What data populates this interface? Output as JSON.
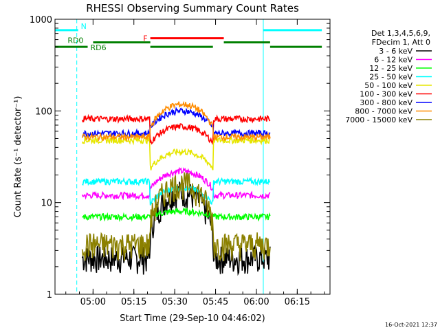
{
  "chart_data": {
    "type": "line",
    "title": "RHESSI Observing Summary Count Rates",
    "xlabel": "Start Time (29-Sep-10 04:46:02)",
    "ylabel": "Count Rate (s⁻¹ detector⁻¹)",
    "x_unit": "minutes since 04:46:02",
    "xlim": [
      0,
      101
    ],
    "ylim": [
      1,
      1000
    ],
    "yscale": "log",
    "x_ticks": [
      {
        "t": 13.97,
        "label": "05:00"
      },
      {
        "t": 28.97,
        "label": "05:15"
      },
      {
        "t": 43.97,
        "label": "05:30"
      },
      {
        "t": 58.97,
        "label": "05:45"
      },
      {
        "t": 73.97,
        "label": "06:00"
      },
      {
        "t": 88.97,
        "label": "06:15"
      }
    ],
    "y_ticks": [
      {
        "v": 1,
        "label": "1"
      },
      {
        "v": 10,
        "label": "10"
      },
      {
        "v": 100,
        "label": "100"
      },
      {
        "v": 1000,
        "label": "1000"
      }
    ],
    "legend": {
      "position": "right",
      "header": [
        "Det 1,3,4,5,6,9,",
        "FDecim 1, Att 0"
      ]
    },
    "series": [
      {
        "name": "3 - 6 keV",
        "color": "#000000",
        "base": 2.5,
        "peak": 13
      },
      {
        "name": "6 - 12 keV",
        "color": "#ff00ff",
        "base": 12,
        "peak": 22
      },
      {
        "name": "12 - 25 keV",
        "color": "#00ff00",
        "base": 7,
        "peak": 8
      },
      {
        "name": "25 - 50 keV",
        "color": "#00ffff",
        "base": 17,
        "peak": 13
      },
      {
        "name": "50 - 100 keV",
        "color": "#e6e600",
        "base": 48,
        "peak": 28
      },
      {
        "name": "100 - 300 keV",
        "color": "#ff0000",
        "base": 82,
        "peak": 58
      },
      {
        "name": "300 - 800 keV",
        "color": "#0000ff",
        "base": 57,
        "peak": 100
      },
      {
        "name": "800 - 7000 keV",
        "color": "#ff8c00",
        "base": 52,
        "peak": 118
      },
      {
        "name": "7000 - 15000 keV",
        "color": "#8b8000",
        "base": 3.5,
        "peak": 16
      }
    ],
    "night_lines": [
      0,
      8,
      101
    ],
    "saa_lines": [
      76.5
    ],
    "segments": [
      {
        "label": "N",
        "color": "#00ffff",
        "level": 760,
        "from": 0,
        "to": 8.5
      },
      {
        "label": "",
        "color": "#00ffff",
        "level": 760,
        "from": 76.5,
        "to": 98
      },
      {
        "label": "F",
        "color": "#ff0000",
        "level": 620,
        "from": 35,
        "to": 62
      },
      {
        "label": "RD0",
        "color": "#008000",
        "level": 560,
        "from": 14,
        "to": 35
      },
      {
        "label": "RD6",
        "color": "#008000",
        "level": 500,
        "from": 0,
        "to": 12
      },
      {
        "label": "",
        "color": "#008000",
        "level": 500,
        "from": 35,
        "to": 58
      },
      {
        "label": "",
        "color": "#008000",
        "level": 560,
        "from": 62,
        "to": 79
      },
      {
        "label": "",
        "color": "#008000",
        "level": 500,
        "from": 79,
        "to": 98
      }
    ]
  },
  "timestamp": "16-Oct-2021 12:37"
}
